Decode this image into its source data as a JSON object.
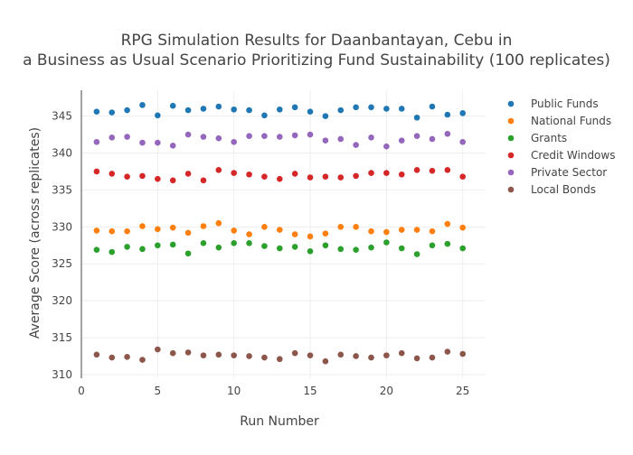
{
  "chart_data": {
    "type": "scatter",
    "title_lines": [
      "RPG Simulation Results for Daanbantayan, Cebu in",
      "a Business as Usual Scenario Prioritizing Fund Sustainability (100 replicates)"
    ],
    "xlabel": "Run Number",
    "ylabel": "Average Score (across replicates)",
    "xlim": [
      0,
      26.5
    ],
    "ylim": [
      309.5,
      348.5
    ],
    "x_ticks": [
      0,
      5,
      10,
      15,
      20,
      25
    ],
    "y_ticks": [
      310,
      315,
      320,
      325,
      330,
      335,
      340,
      345
    ],
    "grid": true,
    "legend_position": "right",
    "x": [
      1,
      2,
      3,
      4,
      5,
      6,
      7,
      8,
      9,
      10,
      11,
      12,
      13,
      14,
      15,
      16,
      17,
      18,
      19,
      20,
      21,
      22,
      23,
      24,
      25
    ],
    "series": [
      {
        "name": "Public Funds",
        "color": "#1f77b4",
        "values": [
          345.6,
          345.5,
          345.8,
          346.5,
          345.1,
          346.4,
          345.8,
          346.0,
          346.3,
          345.9,
          345.8,
          345.1,
          345.9,
          346.2,
          345.6,
          345.0,
          345.8,
          346.2,
          346.2,
          346.0,
          346.0,
          344.8,
          346.3,
          345.2,
          345.4
        ]
      },
      {
        "name": "National Funds",
        "color": "#ff7f0e",
        "values": [
          329.5,
          329.4,
          329.4,
          330.1,
          329.7,
          329.9,
          329.2,
          330.1,
          330.5,
          329.5,
          329.0,
          330.0,
          329.6,
          329.0,
          328.7,
          329.1,
          330.0,
          330.0,
          329.4,
          329.3,
          329.6,
          329.6,
          329.4,
          330.4,
          329.9
        ]
      },
      {
        "name": "Grants",
        "color": "#2ca02c",
        "values": [
          326.9,
          326.6,
          327.3,
          327.0,
          327.5,
          327.6,
          326.4,
          327.8,
          327.2,
          327.8,
          327.8,
          327.4,
          327.1,
          327.3,
          326.7,
          327.5,
          327.0,
          326.9,
          327.2,
          327.9,
          327.1,
          326.3,
          327.5,
          327.7,
          327.1
        ]
      },
      {
        "name": "Credit Windows",
        "color": "#d62728",
        "values": [
          337.5,
          337.2,
          336.8,
          336.9,
          336.5,
          336.3,
          337.2,
          336.3,
          337.7,
          337.3,
          337.1,
          336.8,
          336.5,
          337.2,
          336.7,
          336.8,
          336.7,
          336.9,
          337.3,
          337.3,
          337.1,
          337.7,
          337.6,
          337.7,
          336.8
        ]
      },
      {
        "name": "Private Sector",
        "color": "#9467bd",
        "values": [
          341.5,
          342.1,
          342.2,
          341.4,
          341.4,
          341.0,
          342.5,
          342.2,
          342.0,
          341.5,
          342.3,
          342.3,
          342.2,
          342.4,
          342.5,
          341.7,
          341.9,
          341.1,
          342.1,
          340.9,
          341.7,
          342.3,
          341.9,
          342.6,
          341.5
        ]
      },
      {
        "name": "Local Bonds",
        "color": "#8c564b",
        "values": [
          312.7,
          312.3,
          312.4,
          312.0,
          313.4,
          312.9,
          313.0,
          312.6,
          312.7,
          312.6,
          312.5,
          312.3,
          312.1,
          312.9,
          312.6,
          311.8,
          312.7,
          312.5,
          312.3,
          312.6,
          312.9,
          312.2,
          312.3,
          313.1,
          312.8
        ]
      }
    ]
  }
}
